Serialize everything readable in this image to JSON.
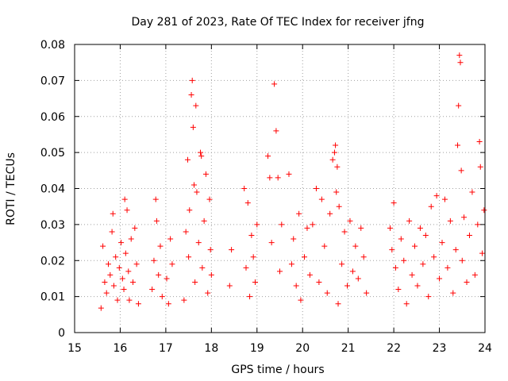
{
  "chart_data": {
    "type": "scatter",
    "title": "Day 281 of 2023, Rate Of TEC Index for receiver jfng",
    "xlabel": "GPS time / hours",
    "ylabel": "ROTI / TECUs",
    "xlim": [
      15,
      24
    ],
    "ylim": [
      0,
      0.08
    ],
    "xticks": [
      15,
      16,
      17,
      18,
      19,
      20,
      21,
      22,
      23,
      24
    ],
    "xtick_labels": [
      "15",
      "16",
      "17",
      "18",
      "19",
      "20",
      "21",
      "22",
      "23",
      "24"
    ],
    "yticks": [
      0,
      0.01,
      0.02,
      0.03,
      0.04,
      0.05,
      0.06,
      0.07,
      0.08
    ],
    "ytick_labels": [
      "0",
      "0.01",
      "0.02",
      "0.03",
      "0.04",
      "0.05",
      "0.06",
      "0.07",
      "0.08"
    ],
    "grid": true,
    "marker": "+",
    "marker_color": "#ff0000",
    "series": [
      {
        "name": "ROTI",
        "points": [
          [
            15.58,
            0.0068
          ],
          [
            15.62,
            0.024
          ],
          [
            15.66,
            0.014
          ],
          [
            15.7,
            0.011
          ],
          [
            15.74,
            0.019
          ],
          [
            15.78,
            0.016
          ],
          [
            15.82,
            0.028
          ],
          [
            15.84,
            0.033
          ],
          [
            15.86,
            0.013
          ],
          [
            15.9,
            0.021
          ],
          [
            15.94,
            0.009
          ],
          [
            15.98,
            0.018
          ],
          [
            16.02,
            0.025
          ],
          [
            16.05,
            0.015
          ],
          [
            16.08,
            0.012
          ],
          [
            16.1,
            0.037
          ],
          [
            16.12,
            0.022
          ],
          [
            16.15,
            0.034
          ],
          [
            16.18,
            0.017
          ],
          [
            16.2,
            0.009
          ],
          [
            16.24,
            0.026
          ],
          [
            16.28,
            0.014
          ],
          [
            16.32,
            0.029
          ],
          [
            16.36,
            0.019
          ],
          [
            16.4,
            0.008
          ],
          [
            16.7,
            0.012
          ],
          [
            16.74,
            0.02
          ],
          [
            16.78,
            0.037
          ],
          [
            16.8,
            0.031
          ],
          [
            16.84,
            0.016
          ],
          [
            16.88,
            0.024
          ],
          [
            16.92,
            0.01
          ],
          [
            17.02,
            0.015
          ],
          [
            17.06,
            0.008
          ],
          [
            17.1,
            0.026
          ],
          [
            17.14,
            0.019
          ],
          [
            17.4,
            0.009
          ],
          [
            17.44,
            0.028
          ],
          [
            17.48,
            0.048
          ],
          [
            17.5,
            0.021
          ],
          [
            17.52,
            0.034
          ],
          [
            17.56,
            0.066
          ],
          [
            17.58,
            0.07
          ],
          [
            17.6,
            0.057
          ],
          [
            17.62,
            0.041
          ],
          [
            17.64,
            0.014
          ],
          [
            17.66,
            0.063
          ],
          [
            17.68,
            0.039
          ],
          [
            17.72,
            0.025
          ],
          [
            17.76,
            0.05
          ],
          [
            17.78,
            0.049
          ],
          [
            17.8,
            0.018
          ],
          [
            17.84,
            0.031
          ],
          [
            17.88,
            0.044
          ],
          [
            17.92,
            0.011
          ],
          [
            17.96,
            0.037
          ],
          [
            17.98,
            0.023
          ],
          [
            18.0,
            0.016
          ],
          [
            18.4,
            0.013
          ],
          [
            18.44,
            0.023
          ],
          [
            18.72,
            0.04
          ],
          [
            18.76,
            0.018
          ],
          [
            18.8,
            0.036
          ],
          [
            18.84,
            0.01
          ],
          [
            18.88,
            0.027
          ],
          [
            18.92,
            0.021
          ],
          [
            18.96,
            0.014
          ],
          [
            19.0,
            0.03
          ],
          [
            19.24,
            0.049
          ],
          [
            19.28,
            0.043
          ],
          [
            19.32,
            0.025
          ],
          [
            19.38,
            0.069
          ],
          [
            19.42,
            0.056
          ],
          [
            19.46,
            0.043
          ],
          [
            19.5,
            0.017
          ],
          [
            19.54,
            0.03
          ],
          [
            19.7,
            0.044
          ],
          [
            19.76,
            0.019
          ],
          [
            19.8,
            0.026
          ],
          [
            19.86,
            0.013
          ],
          [
            19.92,
            0.033
          ],
          [
            19.96,
            0.009
          ],
          [
            20.04,
            0.021
          ],
          [
            20.1,
            0.029
          ],
          [
            20.16,
            0.016
          ],
          [
            20.22,
            0.03
          ],
          [
            20.3,
            0.04
          ],
          [
            20.36,
            0.014
          ],
          [
            20.42,
            0.037
          ],
          [
            20.48,
            0.024
          ],
          [
            20.54,
            0.011
          ],
          [
            20.6,
            0.033
          ],
          [
            20.66,
            0.048
          ],
          [
            20.7,
            0.05
          ],
          [
            20.72,
            0.052
          ],
          [
            20.74,
            0.039
          ],
          [
            20.76,
            0.046
          ],
          [
            20.78,
            0.008
          ],
          [
            20.8,
            0.035
          ],
          [
            20.86,
            0.019
          ],
          [
            20.92,
            0.028
          ],
          [
            20.98,
            0.013
          ],
          [
            21.04,
            0.031
          ],
          [
            21.1,
            0.017
          ],
          [
            21.16,
            0.024
          ],
          [
            21.22,
            0.015
          ],
          [
            21.28,
            0.029
          ],
          [
            21.34,
            0.021
          ],
          [
            21.4,
            0.011
          ],
          [
            21.92,
            0.029
          ],
          [
            21.96,
            0.023
          ],
          [
            22.0,
            0.036
          ],
          [
            22.04,
            0.018
          ],
          [
            22.1,
            0.012
          ],
          [
            22.16,
            0.026
          ],
          [
            22.22,
            0.02
          ],
          [
            22.28,
            0.008
          ],
          [
            22.34,
            0.031
          ],
          [
            22.4,
            0.016
          ],
          [
            22.46,
            0.024
          ],
          [
            22.52,
            0.013
          ],
          [
            22.58,
            0.029
          ],
          [
            22.64,
            0.019
          ],
          [
            22.7,
            0.027
          ],
          [
            22.76,
            0.01
          ],
          [
            22.82,
            0.035
          ],
          [
            22.88,
            0.021
          ],
          [
            22.94,
            0.038
          ],
          [
            23.0,
            0.015
          ],
          [
            23.06,
            0.025
          ],
          [
            23.12,
            0.037
          ],
          [
            23.18,
            0.018
          ],
          [
            23.24,
            0.031
          ],
          [
            23.3,
            0.011
          ],
          [
            23.36,
            0.023
          ],
          [
            23.4,
            0.052
          ],
          [
            23.42,
            0.063
          ],
          [
            23.44,
            0.077
          ],
          [
            23.46,
            0.075
          ],
          [
            23.48,
            0.045
          ],
          [
            23.5,
            0.02
          ],
          [
            23.54,
            0.032
          ],
          [
            23.6,
            0.014
          ],
          [
            23.66,
            0.027
          ],
          [
            23.72,
            0.039
          ],
          [
            23.78,
            0.016
          ],
          [
            23.84,
            0.03
          ],
          [
            23.88,
            0.053
          ],
          [
            23.9,
            0.046
          ],
          [
            23.94,
            0.022
          ],
          [
            23.98,
            0.034
          ]
        ]
      }
    ]
  }
}
